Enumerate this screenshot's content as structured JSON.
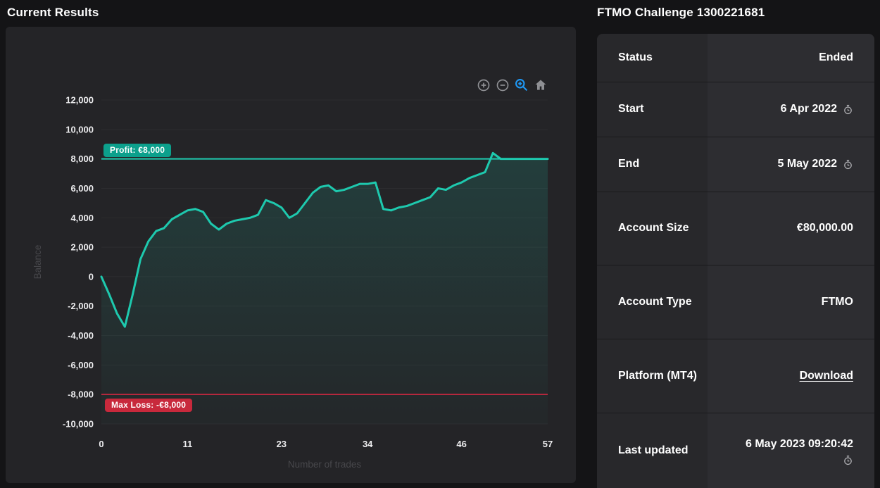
{
  "left_panel": {
    "title": "Current Results",
    "toolbar": {
      "icons": [
        "zoom-in",
        "zoom-out",
        "selection-zoom",
        "reset-zoom-home"
      ],
      "active_icon": "selection-zoom",
      "icon_color": "#8f9094",
      "active_color": "#1e97f3"
    }
  },
  "chart_data": {
    "type": "line",
    "title": "",
    "xlabel": "Number of trades",
    "ylabel": "Balance",
    "xlim": [
      0,
      57
    ],
    "ylim": [
      -10000,
      12000
    ],
    "x_ticks": [
      0,
      11,
      23,
      34,
      46,
      57
    ],
    "y_ticks": [
      12000,
      10000,
      8000,
      6000,
      4000,
      2000,
      0,
      -2000,
      -4000,
      -6000,
      -8000,
      -10000
    ],
    "grid": true,
    "legend": false,
    "series": [
      {
        "name": "Balance",
        "color": "#1ec9ae",
        "fill_opacity_top": 0.16,
        "x_step": 1,
        "values": [
          0,
          -1200,
          -2500,
          -3400,
          -1200,
          1200,
          2400,
          3100,
          3300,
          3900,
          4200,
          4500,
          4600,
          4400,
          3600,
          3200,
          3600,
          3800,
          3900,
          4000,
          4200,
          5200,
          5000,
          4700,
          4000,
          4300,
          5000,
          5700,
          6100,
          6200,
          5800,
          5900,
          6100,
          6300,
          6300,
          6400,
          4600,
          4500,
          4700,
          4800,
          5000,
          5200,
          5400,
          6000,
          5900,
          6200,
          6400,
          6700,
          6900,
          7100,
          8400,
          8000,
          8000,
          8000,
          8000,
          8000,
          8000,
          8000
        ]
      }
    ],
    "annotations": [
      {
        "id": "profit",
        "label": "Profit: €8,000",
        "value": 8000,
        "badge_color": "#0ca08c",
        "line_color": "#1ec9ae"
      },
      {
        "id": "max-loss",
        "label": "Max Loss: -€8,000",
        "value": -8000,
        "badge_color": "#c8293c",
        "line_color": "#d62742"
      }
    ],
    "colors": {
      "panel_bg": "#242427",
      "gridline": "#2c2c2f",
      "tick_text": "#ededef",
      "axis_title_text": "#47474b"
    }
  },
  "right_panel": {
    "title": "FTMO Challenge 1300221681",
    "rows": [
      {
        "label": "Status",
        "value": "Ended"
      },
      {
        "label": "Start",
        "value": "6 Apr 2022",
        "icon": "stopwatch"
      },
      {
        "label": "End",
        "value": "5 May 2022",
        "icon": "stopwatch"
      },
      {
        "label": "Account Size",
        "value": "€80,000.00"
      },
      {
        "label": "Account Type",
        "value": "FTMO"
      },
      {
        "label": "Platform (MT4)",
        "value": "Download",
        "link": true
      },
      {
        "label": "Last updated",
        "value": "6 May 2023 09:20:42",
        "icon": "stopwatch",
        "icon_newline": true
      }
    ]
  }
}
